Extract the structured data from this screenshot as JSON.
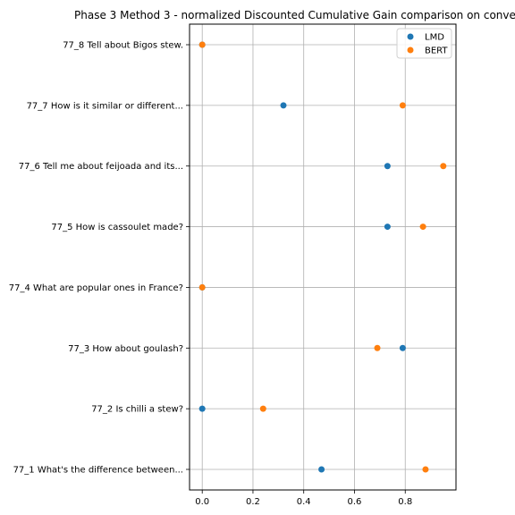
{
  "chart_data": {
    "type": "scatter",
    "title": "Phase 3 Method 3 - normalized Discounted Cumulative Gain comparison on conve",
    "xlabel": "",
    "ylabel": "",
    "xlim": [
      -0.05,
      1.0
    ],
    "xticks": [
      "0.0",
      "0.2",
      "0.4",
      "0.6",
      "0.8"
    ],
    "grid": true,
    "legend_position": "upper-right",
    "categories": [
      "77_1 What's the difference between...",
      "77_2 Is chilli a stew?",
      "77_3 How about goulash?",
      "77_4 What are popular ones in France?",
      "77_5 How is cassoulet made?",
      "77_6 Tell me about feijoada and its...",
      "77_7 How is it similar or different...",
      "77_8 Tell about Bigos stew."
    ],
    "series": [
      {
        "name": "LMD",
        "color": "#1f77b4",
        "values": [
          0.47,
          0.0,
          0.79,
          0.0,
          0.73,
          0.73,
          0.32,
          0.0
        ]
      },
      {
        "name": "BERT",
        "color": "#ff7f0e",
        "values": [
          0.88,
          0.24,
          0.69,
          0.0,
          0.87,
          0.95,
          0.79,
          0.0
        ]
      }
    ]
  }
}
